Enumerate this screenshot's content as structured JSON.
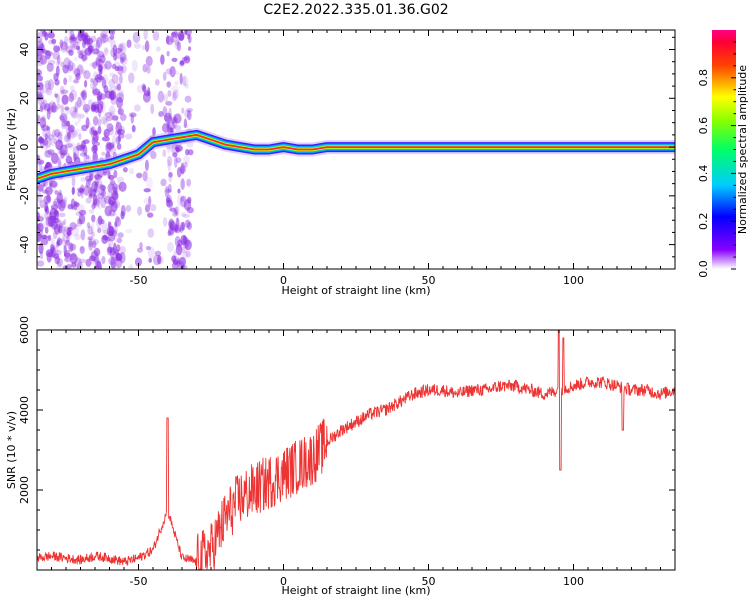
{
  "title": "C2E2.2022.335.01.36.G02",
  "colors": {
    "snr_line": "#ee3333",
    "spectrum_scatter": "#8a2be2",
    "axis": "#000000"
  },
  "chart_data": [
    {
      "type": "heatmap",
      "xlabel": "Height of straight line (km)",
      "ylabel": "Frequency (Hz)",
      "xlim": [
        -85,
        135
      ],
      "ylim": [
        -50,
        48
      ],
      "xticks": [
        -50,
        0,
        50,
        100
      ],
      "yticks": [
        -40,
        -20,
        0,
        20,
        40
      ],
      "colorbar": {
        "label": "Normalized spectral amplitude",
        "range": [
          0.0,
          1.0
        ],
        "ticks": [
          0.0,
          0.2,
          0.4,
          0.6,
          0.8
        ],
        "colormap": "rainbow"
      },
      "ridge": {
        "x": [
          -85,
          -80,
          -75,
          -70,
          -65,
          -60,
          -55,
          -50,
          -45,
          -40,
          -35,
          -30,
          -25,
          -20,
          -15,
          -10,
          -5,
          0,
          5,
          10,
          15,
          135
        ],
        "y": [
          -13,
          -11,
          -10,
          -9,
          -8,
          -7,
          -5,
          -3,
          2,
          3,
          4,
          5,
          3,
          1,
          0,
          -1,
          -1,
          0,
          -1,
          -1,
          0,
          0
        ]
      }
    },
    {
      "type": "line",
      "xlabel": "Height of straight line (km)",
      "ylabel": "SNR (10 * v/v)",
      "xlim": [
        -85,
        135
      ],
      "ylim": [
        0,
        6000
      ],
      "xticks": [
        -50,
        0,
        50,
        100
      ],
      "yticks": [
        2000,
        4000,
        6000
      ],
      "series": [
        {
          "x": [
            -85,
            -80,
            -75,
            -70,
            -65,
            -60,
            -55,
            -50,
            -45,
            -40,
            -35,
            -30,
            -25,
            -20,
            -15,
            -10,
            -5,
            0,
            5,
            10,
            15,
            20,
            25,
            30,
            35,
            40,
            45,
            50,
            55,
            60,
            65,
            70,
            75,
            80,
            85,
            90,
            95,
            100,
            105,
            110,
            115,
            120,
            125,
            130,
            135
          ],
          "y": [
            300,
            350,
            300,
            250,
            350,
            300,
            200,
            300,
            500,
            1500,
            300,
            200,
            500,
            1300,
            1800,
            2000,
            2200,
            2400,
            2600,
            2800,
            3200,
            3500,
            3700,
            3900,
            4000,
            4200,
            4400,
            4500,
            4500,
            4400,
            4500,
            4500,
            4600,
            4600,
            4500,
            4400,
            4500,
            4600,
            4700,
            4700,
            4600,
            4500,
            4500,
            4400,
            4500
          ]
        }
      ]
    }
  ]
}
